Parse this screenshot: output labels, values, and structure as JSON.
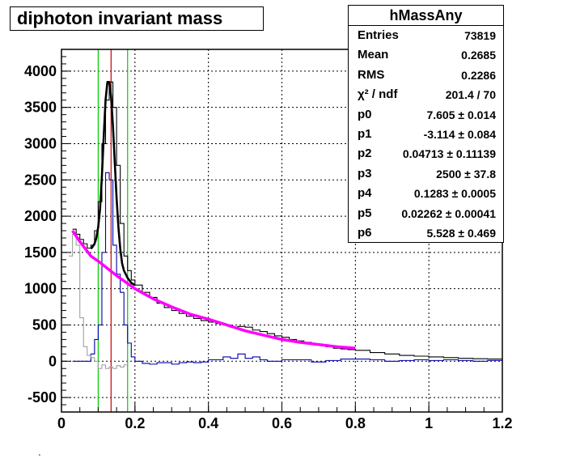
{
  "chart_data": {
    "type": "histogram",
    "title": "diphoton invariant mass",
    "xlim": [
      0,
      1.2
    ],
    "ylim": [
      -700,
      4300
    ],
    "xticks": [
      "0",
      "0.2",
      "0.4",
      "0.6",
      "0.8",
      "1",
      "1.2"
    ],
    "yticks": [
      "-500",
      "0",
      "500",
      "1000",
      "1500",
      "2000",
      "2500",
      "3000",
      "3500",
      "4000"
    ],
    "ytick_values": [
      -500,
      0,
      500,
      1000,
      1500,
      2000,
      2500,
      3000,
      3500,
      4000
    ],
    "grid": true,
    "vertical_lines": [
      {
        "x": 0.1,
        "color": "#00cc00"
      },
      {
        "x": 0.18,
        "color": "#00cc00"
      },
      {
        "x": 0.135,
        "color": "#cc0000"
      }
    ],
    "series": [
      {
        "kind": "histogram",
        "color": "#000000",
        "x": [
          0.03,
          0.04,
          0.05,
          0.06,
          0.07,
          0.08,
          0.09,
          0.1,
          0.11,
          0.12,
          0.13,
          0.14,
          0.15,
          0.16,
          0.17,
          0.18,
          0.19,
          0.2,
          0.22,
          0.24,
          0.26,
          0.28,
          0.3,
          0.32,
          0.34,
          0.36,
          0.38,
          0.4,
          0.42,
          0.44,
          0.46,
          0.48,
          0.5,
          0.52,
          0.54,
          0.56,
          0.58,
          0.6,
          0.62,
          0.64,
          0.66,
          0.68,
          0.7,
          0.72,
          0.74,
          0.76,
          0.78,
          0.8,
          0.84,
          0.88,
          0.92,
          0.96,
          1.0,
          1.04,
          1.08,
          1.12,
          1.16,
          1.2
        ],
        "y": [
          1820,
          1750,
          1680,
          1620,
          1560,
          1600,
          1800,
          2200,
          3000,
          3600,
          3850,
          3500,
          2700,
          1900,
          1450,
          1250,
          1120,
          1050,
          950,
          880,
          800,
          740,
          700,
          660,
          620,
          590,
          560,
          540,
          520,
          500,
          470,
          480,
          470,
          430,
          410,
          380,
          350,
          330,
          300,
          280,
          260,
          240,
          220,
          200,
          180,
          170,
          160,
          150,
          120,
          100,
          80,
          70,
          60,
          50,
          40,
          35,
          30,
          25
        ]
      },
      {
        "kind": "histogram",
        "color": "#0000aa",
        "x": [
          0.03,
          0.05,
          0.07,
          0.08,
          0.09,
          0.1,
          0.11,
          0.12,
          0.13,
          0.14,
          0.15,
          0.16,
          0.17,
          0.18,
          0.19,
          0.2,
          0.22,
          0.24,
          0.26,
          0.28,
          0.3,
          0.32,
          0.34,
          0.36,
          0.38,
          0.4,
          0.42,
          0.44,
          0.46,
          0.48,
          0.5,
          0.52,
          0.54,
          0.56,
          0.6,
          0.64,
          0.68,
          0.72,
          0.76,
          0.8,
          0.84,
          0.88,
          0.92,
          0.96,
          1.0,
          1.04,
          1.08,
          1.12,
          1.16,
          1.2
        ],
        "y": [
          0,
          0,
          0,
          100,
          300,
          500,
          1500,
          2600,
          2500,
          1600,
          1200,
          950,
          500,
          250,
          60,
          0,
          -30,
          -40,
          -20,
          -20,
          -40,
          -20,
          -10,
          -20,
          -10,
          20,
          20,
          60,
          40,
          100,
          40,
          60,
          20,
          0,
          20,
          20,
          -10,
          10,
          30,
          30,
          20,
          0,
          10,
          20,
          10,
          20,
          10,
          0,
          10,
          0
        ]
      },
      {
        "kind": "histogram",
        "color": "#a0a0a0",
        "x": [
          0.02,
          0.03,
          0.04,
          0.05,
          0.06,
          0.07,
          0.08,
          0.09,
          0.1,
          0.11,
          0.12,
          0.13,
          0.14,
          0.15,
          0.16,
          0.17,
          0.18
        ],
        "y": [
          1450,
          1750,
          1600,
          600,
          200,
          80,
          50,
          0,
          -100,
          -50,
          -100,
          -80,
          -100,
          -60,
          -80,
          -50,
          -30
        ]
      },
      {
        "kind": "fit",
        "color": "#000000",
        "x": [
          0.08,
          0.085,
          0.09,
          0.095,
          0.1,
          0.105,
          0.11,
          0.115,
          0.12,
          0.125,
          0.13,
          0.135,
          0.14,
          0.145,
          0.15,
          0.155,
          0.16,
          0.165,
          0.17,
          0.18,
          0.19,
          0.2
        ],
        "y": [
          1550,
          1580,
          1620,
          1700,
          1850,
          2100,
          2550,
          3100,
          3600,
          3850,
          3850,
          3650,
          3250,
          2750,
          2250,
          1850,
          1550,
          1350,
          1250,
          1150,
          1080,
          1050
        ]
      },
      {
        "kind": "fit",
        "color": "#ff00ff",
        "x": [
          0.03,
          0.05,
          0.08,
          0.1,
          0.15,
          0.2,
          0.25,
          0.3,
          0.35,
          0.4,
          0.45,
          0.5,
          0.55,
          0.6,
          0.65,
          0.7,
          0.75,
          0.8
        ],
        "y": [
          1800,
          1650,
          1450,
          1380,
          1180,
          1000,
          860,
          750,
          650,
          580,
          500,
          420,
          360,
          300,
          260,
          230,
          200,
          180
        ]
      }
    ]
  },
  "stats": {
    "title": "hMassAny",
    "rows": [
      {
        "k": "Entries",
        "v": "73819"
      },
      {
        "k": "Mean",
        "v": "0.2685"
      },
      {
        "k": "RMS",
        "v": "0.2286"
      },
      {
        "k": "χ² / ndf",
        "v": "201.4 / 70"
      },
      {
        "k": "p0",
        "v": "7.605 ± 0.014"
      },
      {
        "k": "p1",
        "v": "-3.114 ± 0.084"
      },
      {
        "k": "p2",
        "v": "0.04713 ± 0.11139"
      },
      {
        "k": "p3",
        "v": "2500 ± 37.8"
      },
      {
        "k": "p4",
        "v": "0.1283 ± 0.0005"
      },
      {
        "k": "p5",
        "v": "0.02262 ± 0.00041"
      },
      {
        "k": "p6",
        "v": "5.528 ± 0.469"
      }
    ]
  },
  "footnote": "'"
}
